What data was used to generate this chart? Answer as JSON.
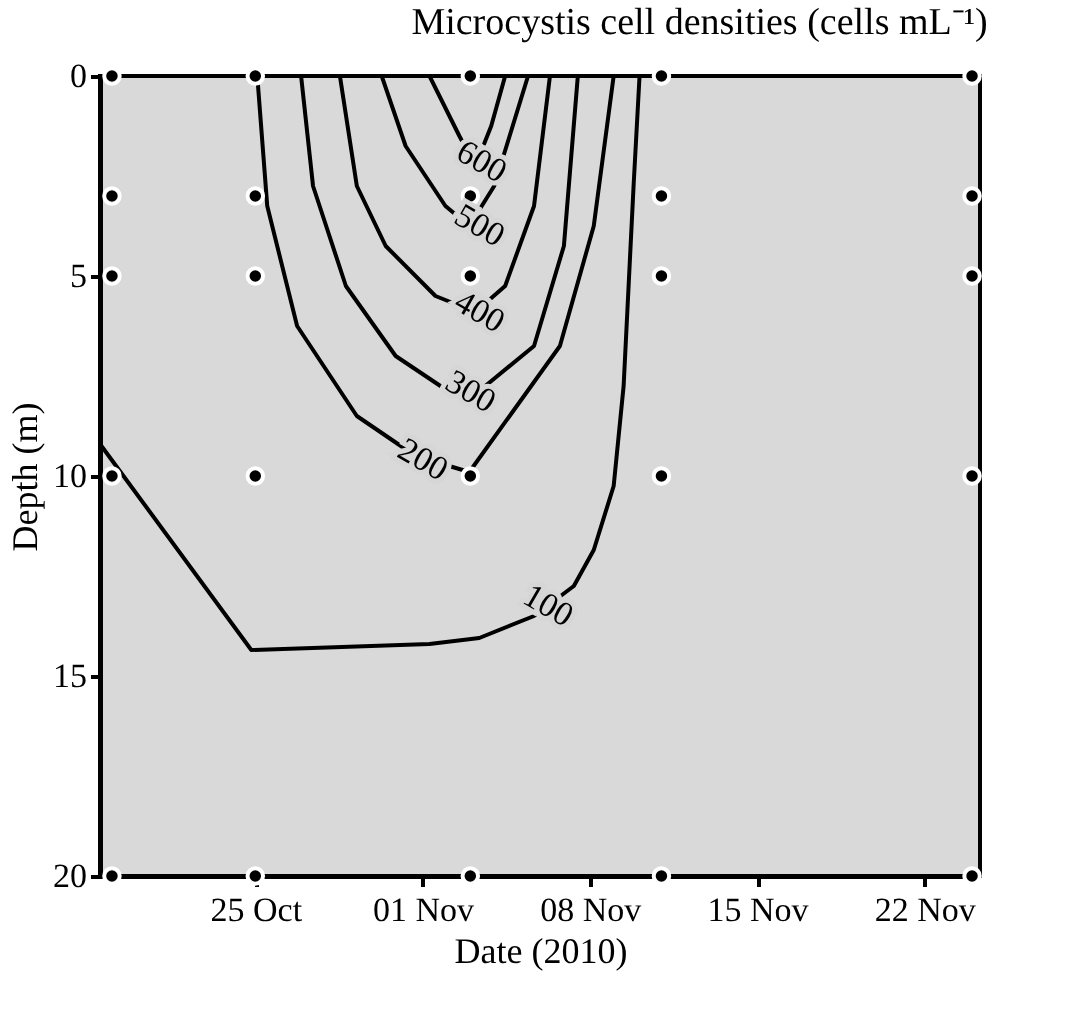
{
  "chart_data": {
    "type": "line",
    "title": "Microcystis cell densities (cells mL⁻¹)",
    "xlabel": "Date (2010)",
    "ylabel": "Depth (m)",
    "xlim": [
      "2010-10-18T12:00",
      "2010-11-24T08:00"
    ],
    "xticks": [
      {
        "value": "2010-10-25",
        "label": "25 Oct"
      },
      {
        "value": "2010-11-01",
        "label": "01 Nov"
      },
      {
        "value": "2010-11-08",
        "label": "08 Nov"
      },
      {
        "value": "2010-11-15",
        "label": "15 Nov"
      },
      {
        "value": "2010-11-22",
        "label": "22 Nov"
      }
    ],
    "ylim": [
      20,
      0
    ],
    "yticks": [
      0,
      5,
      10,
      15,
      20
    ],
    "grid": false,
    "line_style": "solid",
    "series": [
      {
        "type": "line",
        "color": "#000000",
        "x": [
          "2010-10-18T12:00",
          "2010-10-24T20:00",
          "2010-11-01T07:00",
          "2010-11-03T09:00",
          "2010-11-05T16:00",
          "2010-11-07T08:00",
          "2010-11-08T04:00",
          "2010-11-09T00:00",
          "2010-11-09T10:00",
          "2010-11-09T20:00",
          "2010-11-10T02:00"
        ],
        "values": [
          9.2,
          14.35,
          14.2,
          14.05,
          13.5,
          12.75,
          11.85,
          10.25,
          7.75,
          2.75,
          0
        ]
      },
      {
        "type": "line",
        "color": "#000000",
        "x": [
          "2010-10-25T02:00",
          "2010-10-25T12:00",
          "2010-10-26T18:00",
          "2010-10-29T06:00",
          "2010-10-31T17:00",
          "2010-11-02T23:00",
          "2010-11-06T18:00",
          "2010-11-08T04:00",
          "2010-11-09T00:00"
        ],
        "values": [
          0,
          3.25,
          6.25,
          8.5,
          9.5,
          9.9,
          6.75,
          3.75,
          0
        ]
      },
      {
        "type": "line",
        "color": "#000000",
        "x": [
          "2010-10-26T22:00",
          "2010-10-27T10:00",
          "2010-10-28T19:00",
          "2010-10-30T21:00",
          "2010-11-02T03:00",
          "2010-11-03T15:00",
          "2010-11-05T16:00",
          "2010-11-06T22:00",
          "2010-11-07T12:00"
        ],
        "values": [
          0,
          2.75,
          5.25,
          7,
          7.9,
          7.75,
          6.75,
          4.25,
          0
        ]
      },
      {
        "type": "line",
        "color": "#000000",
        "x": [
          "2010-10-28T13:00",
          "2010-10-29T06:00",
          "2010-10-30T11:00",
          "2010-11-01T13:00",
          "2010-11-03T05:00",
          "2010-11-04T11:00",
          "2010-11-05T16:00",
          "2010-11-06T08:00"
        ],
        "values": [
          0,
          2.75,
          4.25,
          5.5,
          5.9,
          5.25,
          3.25,
          0
        ]
      },
      {
        "type": "line",
        "color": "#000000",
        "x": [
          "2010-10-30T07:00",
          "2010-10-31T07:00",
          "2010-11-01T23:00",
          "2010-11-02T23:00",
          "2010-11-04T00:00",
          "2010-11-05T10:00"
        ],
        "values": [
          0,
          1.75,
          3.25,
          3.75,
          2.75,
          0
        ]
      },
      {
        "type": "line",
        "color": "#000000",
        "x": [
          "2010-11-01T07:00",
          "2010-11-02T13:00",
          "2010-11-03T05:00",
          "2010-11-03T21:00",
          "2010-11-04T11:00"
        ],
        "values": [
          0,
          1.5,
          2.25,
          1.25,
          0
        ]
      },
      {
        "type": "scatter",
        "color": "#000000",
        "marker": "circle",
        "x": [
          "2010-10-19",
          "2010-10-19",
          "2010-10-19",
          "2010-10-19",
          "2010-10-19",
          "2010-10-25",
          "2010-10-25",
          "2010-10-25",
          "2010-10-25",
          "2010-10-25",
          "2010-11-03",
          "2010-11-03",
          "2010-11-03",
          "2010-11-03",
          "2010-11-03",
          "2010-11-11",
          "2010-11-11",
          "2010-11-11",
          "2010-11-11",
          "2010-11-11",
          "2010-11-24",
          "2010-11-24",
          "2010-11-24",
          "2010-11-24",
          "2010-11-24"
        ],
        "values": [
          0,
          3,
          5,
          10,
          20,
          0,
          3,
          5,
          10,
          20,
          0,
          3,
          5,
          10,
          20,
          0,
          3,
          5,
          10,
          20,
          0,
          3,
          5,
          10,
          20
        ]
      }
    ],
    "annotations": [
      {
        "text": "600",
        "x": "2010-11-03T11:00",
        "y": 2.15
      },
      {
        "text": "500",
        "x": "2010-11-03T09:00",
        "y": 3.75
      },
      {
        "text": "400",
        "x": "2010-11-03T09:00",
        "y": 5.9
      },
      {
        "text": "300",
        "x": "2010-11-03T00:00",
        "y": 7.9
      },
      {
        "text": "200",
        "x": "2010-11-01T00:00",
        "y": 9.6
      },
      {
        "text": "100",
        "x": "2010-11-06T06:00",
        "y": 13.25
      }
    ]
  }
}
